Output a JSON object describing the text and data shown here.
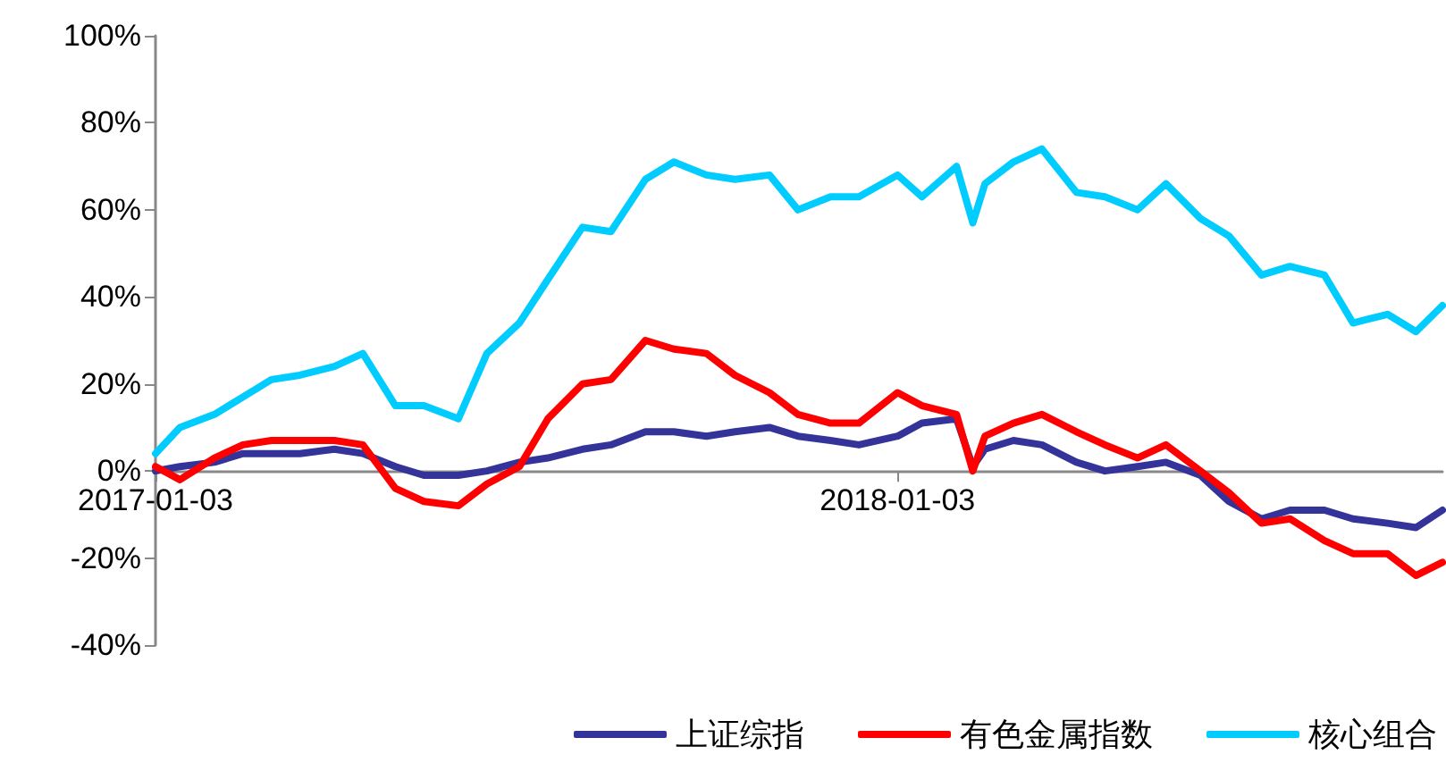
{
  "chart_data": {
    "type": "line",
    "x": [
      "2017-01-03",
      "2017-01-15",
      "2017-02-01",
      "2017-02-15",
      "2017-03-01",
      "2017-03-15",
      "2017-04-01",
      "2017-04-15",
      "2017-05-01",
      "2017-05-15",
      "2017-06-01",
      "2017-06-15",
      "2017-07-01",
      "2017-07-15",
      "2017-08-01",
      "2017-08-15",
      "2017-09-01",
      "2017-09-15",
      "2017-10-01",
      "2017-10-15",
      "2017-11-01",
      "2017-11-15",
      "2017-12-01",
      "2017-12-15",
      "2018-01-03",
      "2018-01-15",
      "2018-02-01",
      "2018-02-09",
      "2018-02-15",
      "2018-03-01",
      "2018-03-15",
      "2018-04-01",
      "2018-04-15",
      "2018-05-01",
      "2018-05-15",
      "2018-06-01",
      "2018-06-15",
      "2018-07-01",
      "2018-07-15",
      "2018-08-01",
      "2018-08-15",
      "2018-09-01",
      "2018-09-15",
      "2018-09-28"
    ],
    "series": [
      {
        "name": "上证综指",
        "color": "#333399",
        "values": [
          0,
          1,
          2,
          4,
          4,
          4,
          5,
          4,
          1,
          -1,
          -1,
          0,
          2,
          3,
          5,
          6,
          9,
          9,
          8,
          9,
          10,
          8,
          7,
          6,
          8,
          11,
          12,
          1,
          5,
          7,
          6,
          2,
          0,
          1,
          2,
          -1,
          -7,
          -11,
          -9,
          -9,
          -11,
          -12,
          -13,
          -9
        ]
      },
      {
        "name": "有色金属指数",
        "color": "#ff0000",
        "values": [
          1,
          -2,
          3,
          6,
          7,
          7,
          7,
          6,
          -4,
          -7,
          -8,
          -3,
          1,
          12,
          20,
          21,
          30,
          28,
          27,
          22,
          18,
          13,
          11,
          11,
          18,
          15,
          13,
          0,
          8,
          11,
          13,
          9,
          6,
          3,
          6,
          0,
          -5,
          -12,
          -11,
          -16,
          -19,
          -19,
          -24,
          -21
        ]
      },
      {
        "name": "核心组合",
        "color": "#00ccff",
        "values": [
          4,
          10,
          13,
          17,
          21,
          22,
          24,
          27,
          15,
          15,
          12,
          27,
          34,
          44,
          56,
          55,
          67,
          71,
          68,
          67,
          68,
          60,
          63,
          63,
          68,
          63,
          70,
          57,
          66,
          71,
          74,
          64,
          63,
          60,
          66,
          58,
          54,
          45,
          47,
          45,
          34,
          36,
          32,
          38
        ]
      }
    ],
    "xlim": [
      "2017-01-03",
      "2018-09-28"
    ],
    "xticks": [
      "2017-01-03",
      "2018-01-03"
    ],
    "ylim": [
      -40,
      100
    ],
    "yticks": [
      {
        "value": -40,
        "label": "-40%"
      },
      {
        "value": -20,
        "label": "-20%"
      },
      {
        "value": 0,
        "label": "0%"
      },
      {
        "value": 20,
        "label": "20%"
      },
      {
        "value": 40,
        "label": "40%"
      },
      {
        "value": 60,
        "label": "60%"
      },
      {
        "value": 80,
        "label": "80%"
      },
      {
        "value": 100,
        "label": "100%"
      }
    ],
    "grid": false,
    "legend": "bottom right",
    "marker": "none",
    "line_style": "solid"
  }
}
